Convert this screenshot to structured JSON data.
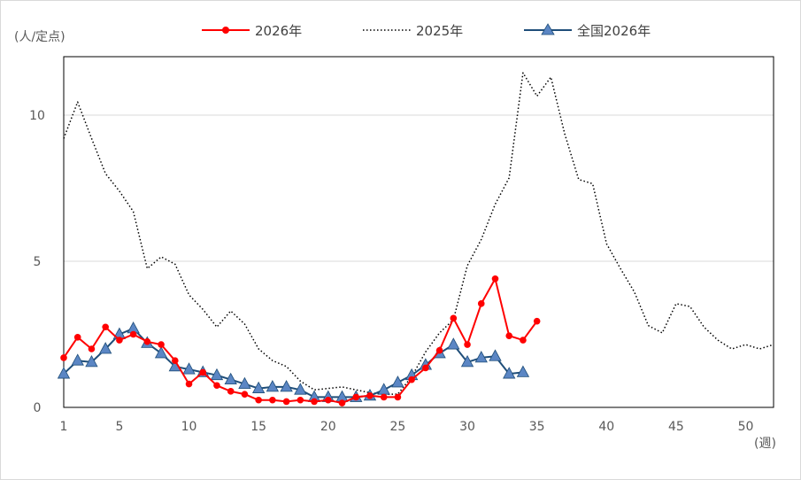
{
  "chart_data": {
    "type": "line",
    "ylabel": "(人/定点)",
    "xlabel": "(週)",
    "xlim": [
      1,
      52
    ],
    "ylim": [
      0,
      12
    ],
    "y_ticks": [
      0,
      5,
      10
    ],
    "x_ticks": [
      1,
      5,
      10,
      15,
      20,
      25,
      30,
      35,
      40,
      45,
      50
    ],
    "grid": true,
    "legend_position": "top",
    "series": [
      {
        "name": "2026年",
        "color": "#ff0000",
        "style": "solid",
        "marker": "circle",
        "x": [
          1,
          2,
          3,
          4,
          5,
          6,
          7,
          8,
          9,
          10,
          11,
          12,
          13,
          14,
          15,
          16,
          17,
          18,
          19,
          20,
          21,
          22,
          23,
          24,
          25,
          26,
          27,
          28,
          29,
          30,
          31,
          32,
          33,
          34,
          35
        ],
        "values": [
          1.7,
          2.4,
          2.0,
          2.75,
          2.3,
          2.5,
          2.25,
          2.15,
          1.6,
          0.8,
          1.2,
          0.75,
          0.55,
          0.45,
          0.25,
          0.25,
          0.2,
          0.25,
          0.2,
          0.25,
          0.15,
          0.35,
          0.4,
          0.35,
          0.35,
          0.95,
          1.35,
          1.95,
          3.05,
          2.15,
          3.55,
          4.4,
          2.45,
          2.3,
          2.95
        ]
      },
      {
        "name": "2025年",
        "color": "#000000",
        "style": "dotted",
        "marker": "none",
        "x": [
          1,
          2,
          3,
          4,
          5,
          6,
          7,
          8,
          9,
          10,
          11,
          12,
          13,
          14,
          15,
          16,
          17,
          18,
          19,
          20,
          21,
          22,
          23,
          24,
          25,
          26,
          27,
          28,
          29,
          30,
          31,
          32,
          33,
          34,
          35,
          36,
          37,
          38,
          39,
          40,
          41,
          42,
          43,
          44,
          45,
          46,
          47,
          48,
          49,
          50,
          51,
          52
        ],
        "values": [
          9.2,
          10.45,
          9.2,
          8.0,
          7.4,
          6.7,
          4.75,
          5.15,
          4.9,
          3.85,
          3.35,
          2.75,
          3.3,
          2.85,
          2.0,
          1.6,
          1.4,
          0.9,
          0.6,
          0.65,
          0.7,
          0.6,
          0.5,
          0.45,
          0.45,
          1.05,
          1.9,
          2.55,
          3.0,
          4.85,
          5.75,
          6.95,
          7.85,
          11.45,
          10.65,
          11.3,
          9.35,
          7.8,
          7.65,
          5.6,
          4.75,
          3.95,
          2.8,
          2.55,
          3.55,
          3.45,
          2.75,
          2.3,
          2.0,
          2.15,
          2.0,
          2.15
        ]
      },
      {
        "name": "全国2026年",
        "color": "#1f4e79",
        "marker_color": "#5b86c4",
        "style": "solid",
        "marker": "triangle",
        "x": [
          1,
          2,
          3,
          4,
          5,
          6,
          7,
          8,
          9,
          10,
          11,
          12,
          13,
          14,
          15,
          16,
          17,
          18,
          19,
          20,
          21,
          22,
          23,
          24,
          25,
          26,
          27,
          28,
          29,
          30,
          31,
          32,
          33,
          34
        ],
        "values": [
          1.15,
          1.6,
          1.55,
          2.0,
          2.5,
          2.7,
          2.2,
          1.85,
          1.4,
          1.3,
          1.2,
          1.1,
          0.95,
          0.8,
          0.65,
          0.7,
          0.7,
          0.6,
          0.35,
          0.35,
          0.35,
          0.35,
          0.4,
          0.6,
          0.85,
          1.1,
          1.45,
          1.85,
          2.15,
          1.55,
          1.7,
          1.75,
          1.15,
          1.2
        ]
      }
    ]
  }
}
